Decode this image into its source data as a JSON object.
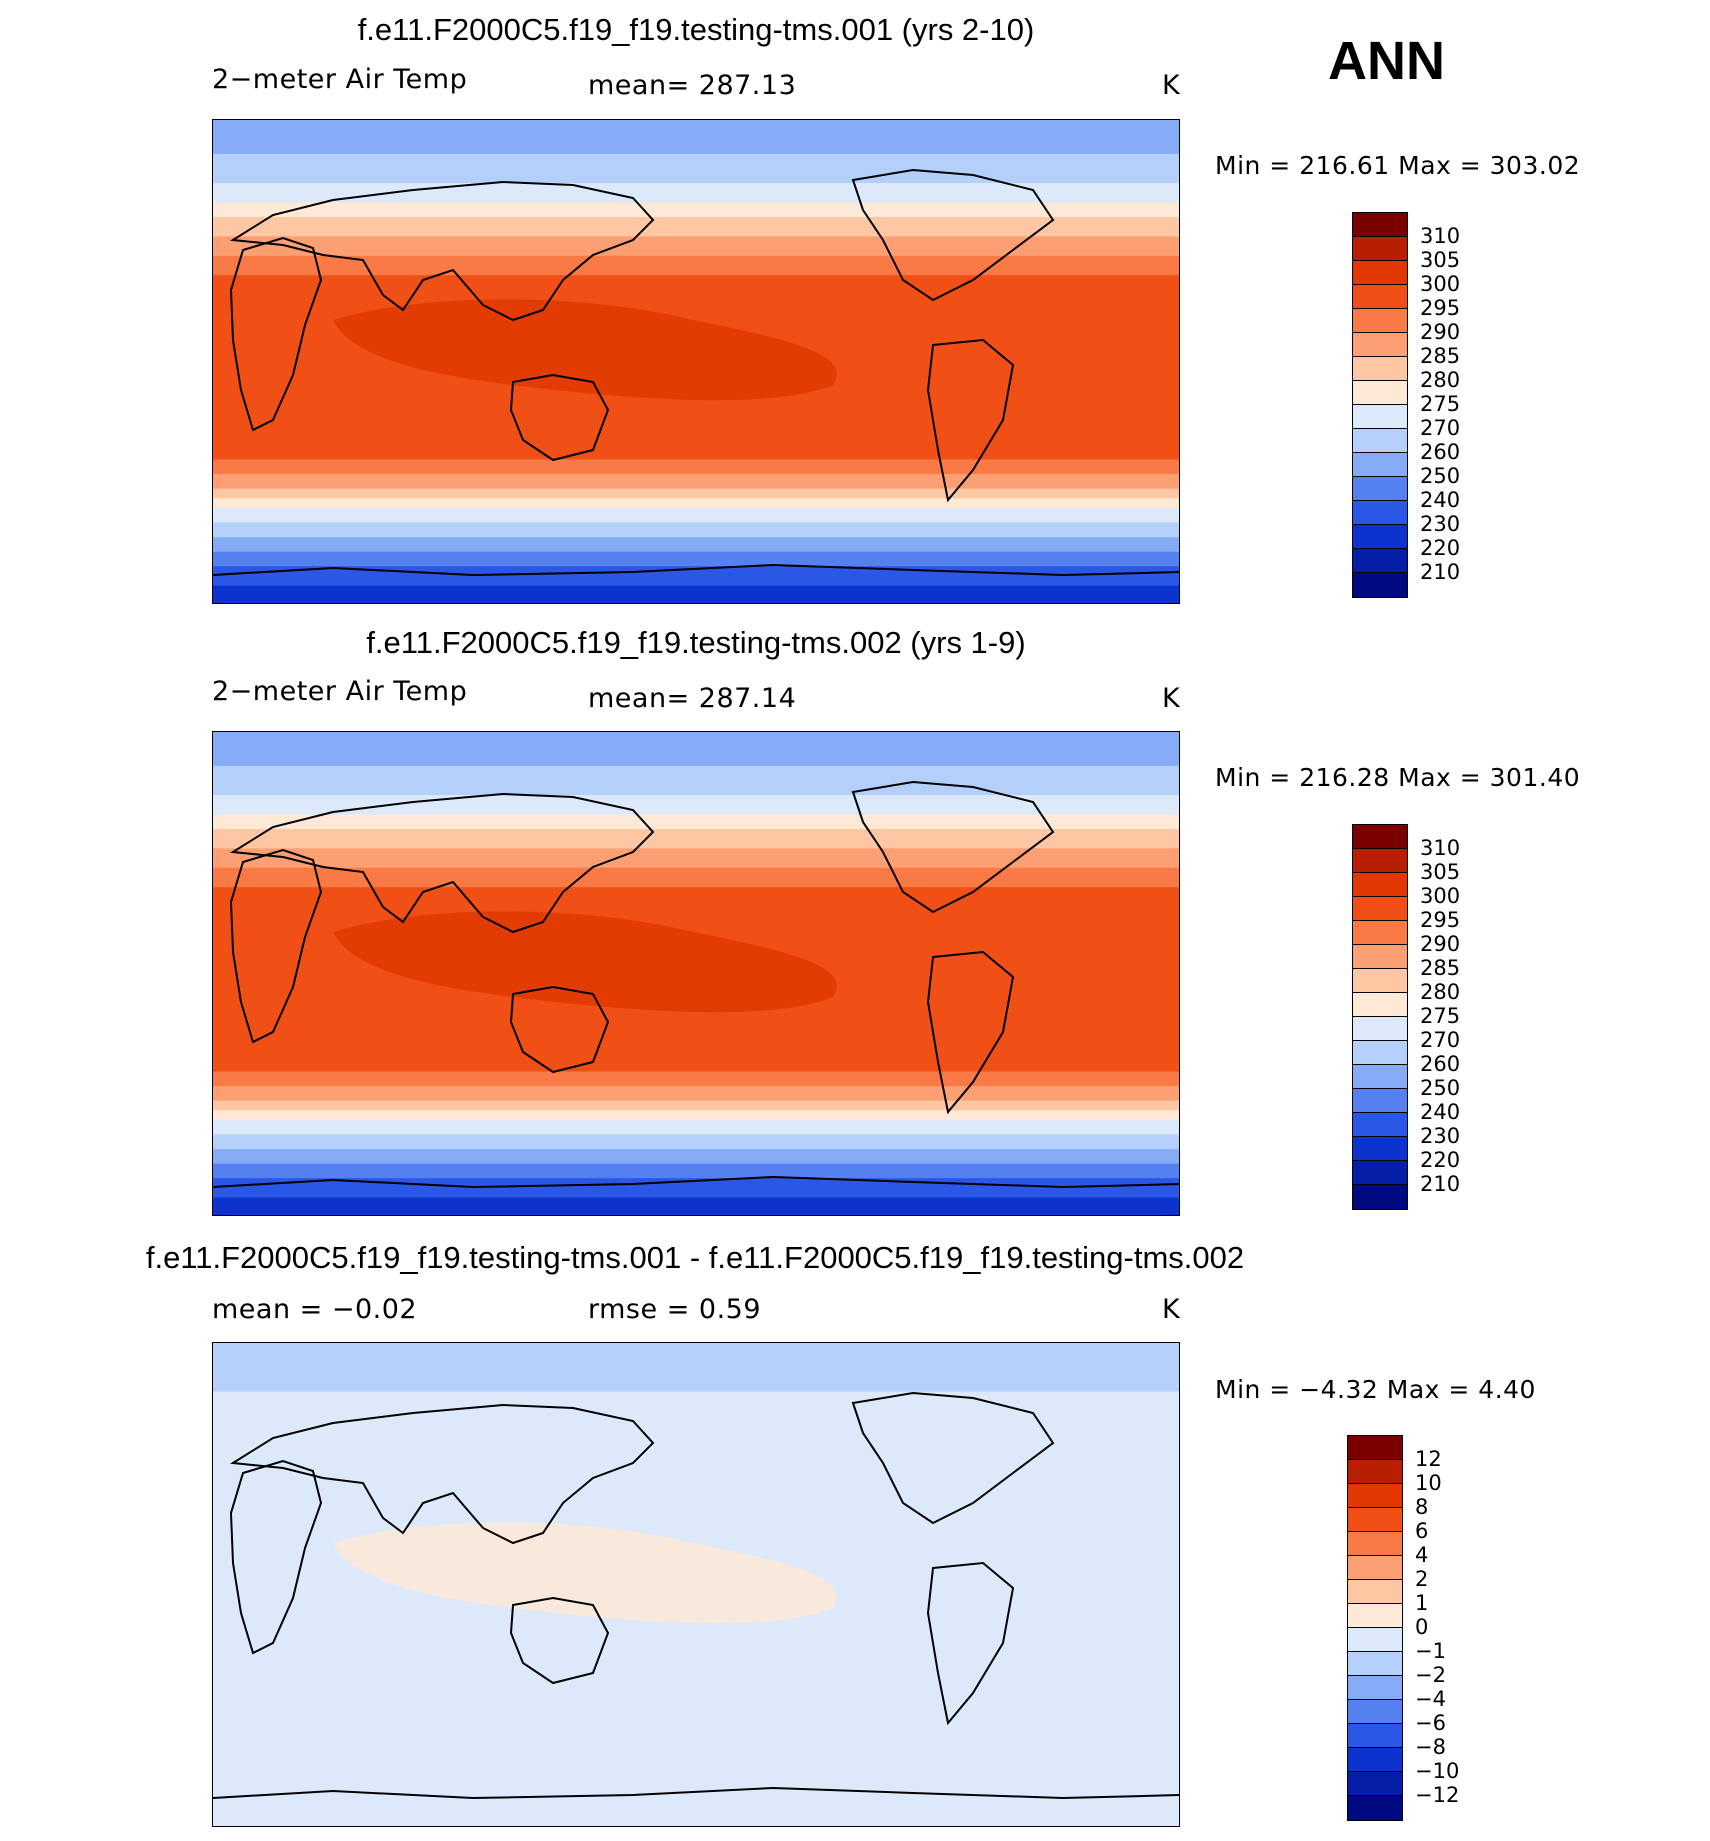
{
  "season": "ANN",
  "panels": [
    {
      "title": "f.e11.F2000C5.f19_f19.testing-tms.001 (yrs 2-10)",
      "left_text": "2−meter Air Temp",
      "mid_text": "mean=  287.13",
      "units": "K",
      "minmax": "Min  =  216.61  Max  =  303.02",
      "colorbar": {
        "labels": [
          "310",
          "305",
          "300",
          "295",
          "290",
          "285",
          "280",
          "275",
          "270",
          "260",
          "250",
          "240",
          "230",
          "220",
          "210"
        ],
        "colors": [
          "#7a0000",
          "#b81f00",
          "#e03800",
          "#f04f15",
          "#fa7a45",
          "#fc9f72",
          "#fdc7a3",
          "#fee9d6",
          "#dbe9fb",
          "#b3cffa",
          "#86abf6",
          "#5480f0",
          "#2b57e6",
          "#0d33cf",
          "#041ea8",
          "#000a80"
        ]
      },
      "map": {
        "bands": [
          [
            "#86abf6",
            0.0,
            0.07
          ],
          [
            "#b3cffa",
            0.07,
            0.13
          ],
          [
            "#dbe9fb",
            0.13,
            0.17
          ],
          [
            "#fee9d6",
            0.17,
            0.2
          ],
          [
            "#fdc7a3",
            0.2,
            0.24
          ],
          [
            "#fc9f72",
            0.24,
            0.28
          ],
          [
            "#fa7a45",
            0.28,
            0.32
          ],
          [
            "#f04f15",
            0.32,
            0.7
          ],
          [
            "#fa7a45",
            0.7,
            0.73
          ],
          [
            "#fc9f72",
            0.73,
            0.76
          ],
          [
            "#fdc7a3",
            0.76,
            0.78
          ],
          [
            "#fee9d6",
            0.78,
            0.8
          ],
          [
            "#dbe9fb",
            0.8,
            0.83
          ],
          [
            "#b3cffa",
            0.83,
            0.86
          ],
          [
            "#86abf6",
            0.86,
            0.89
          ],
          [
            "#5480f0",
            0.89,
            0.92
          ],
          [
            "#2b57e6",
            0.92,
            0.96
          ],
          [
            "#0d33cf",
            0.96,
            1.0
          ]
        ],
        "warm_core": "#e03800"
      }
    },
    {
      "title": "f.e11.F2000C5.f19_f19.testing-tms.002 (yrs 1-9)",
      "left_text": "2−meter Air Temp",
      "mid_text": "mean=  287.14",
      "units": "K",
      "minmax": "Min  =  216.28  Max  =  301.40",
      "colorbar": {
        "labels": [
          "310",
          "305",
          "300",
          "295",
          "290",
          "285",
          "280",
          "275",
          "270",
          "260",
          "250",
          "240",
          "230",
          "220",
          "210"
        ],
        "colors": [
          "#7a0000",
          "#b81f00",
          "#e03800",
          "#f04f15",
          "#fa7a45",
          "#fc9f72",
          "#fdc7a3",
          "#fee9d6",
          "#dbe9fb",
          "#b3cffa",
          "#86abf6",
          "#5480f0",
          "#2b57e6",
          "#0d33cf",
          "#041ea8",
          "#000a80"
        ]
      },
      "map": {
        "bands": [
          [
            "#86abf6",
            0.0,
            0.07
          ],
          [
            "#b3cffa",
            0.07,
            0.13
          ],
          [
            "#dbe9fb",
            0.13,
            0.17
          ],
          [
            "#fee9d6",
            0.17,
            0.2
          ],
          [
            "#fdc7a3",
            0.2,
            0.24
          ],
          [
            "#fc9f72",
            0.24,
            0.28
          ],
          [
            "#fa7a45",
            0.28,
            0.32
          ],
          [
            "#f04f15",
            0.32,
            0.7
          ],
          [
            "#fa7a45",
            0.7,
            0.73
          ],
          [
            "#fc9f72",
            0.73,
            0.76
          ],
          [
            "#fdc7a3",
            0.76,
            0.78
          ],
          [
            "#fee9d6",
            0.78,
            0.8
          ],
          [
            "#dbe9fb",
            0.8,
            0.83
          ],
          [
            "#b3cffa",
            0.83,
            0.86
          ],
          [
            "#86abf6",
            0.86,
            0.89
          ],
          [
            "#5480f0",
            0.89,
            0.92
          ],
          [
            "#2b57e6",
            0.92,
            0.96
          ],
          [
            "#0d33cf",
            0.96,
            1.0
          ]
        ],
        "warm_core": "#e03800"
      }
    },
    {
      "title": "f.e11.F2000C5.f19_f19.testing-tms.001 - f.e11.F2000C5.f19_f19.testing-tms.002",
      "left_text": "mean  =    −0.02",
      "mid_text": "rmse  =     0.59",
      "units": "K",
      "minmax": "Min  =   −4.32  Max  =     4.40",
      "colorbar": {
        "labels": [
          "12",
          "10",
          "8",
          "6",
          "4",
          "2",
          "1",
          "0",
          "−1",
          "−2",
          "−4",
          "−6",
          "−8",
          "−10",
          "−12"
        ],
        "colors": [
          "#7a0000",
          "#b81f00",
          "#e03800",
          "#f04f15",
          "#fa7a45",
          "#fc9f72",
          "#fdc7a3",
          "#fee9d6",
          "#dbe9fb",
          "#b3cffa",
          "#86abf6",
          "#5480f0",
          "#2b57e6",
          "#0d33cf",
          "#041ea8",
          "#000a80"
        ]
      },
      "map": {
        "bands": [
          [
            "#b3cffa",
            0.0,
            0.1
          ],
          [
            "#dbe9fb",
            0.1,
            1.0
          ]
        ],
        "warm_core": "#fee9d6"
      }
    }
  ]
}
